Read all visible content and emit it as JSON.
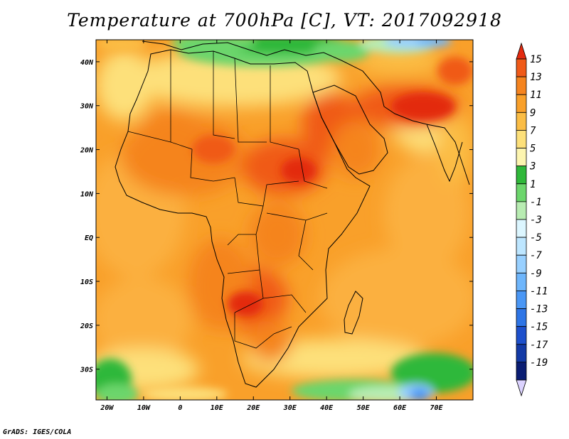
{
  "title": "Temperature at 700hPa [C], VT: 2017092918",
  "footer": "GrADS: IGES/COLA",
  "map": {
    "lon_range": [
      -23,
      80
    ],
    "lat_range": [
      -37,
      45
    ],
    "x_tick_labels": [
      "20W",
      "10W",
      "0",
      "10E",
      "20E",
      "30E",
      "40E",
      "50E",
      "60E",
      "70E"
    ],
    "x_tick_values": [
      -20,
      -10,
      0,
      10,
      20,
      30,
      40,
      50,
      60,
      70
    ],
    "y_tick_labels": [
      "40N",
      "30N",
      "20N",
      "10N",
      "EQ",
      "10S",
      "20S",
      "30S"
    ],
    "y_tick_values": [
      40,
      30,
      20,
      10,
      0,
      -10,
      -20,
      -30
    ]
  },
  "colorbar": {
    "levels": [
      "15",
      "13",
      "11",
      "9",
      "7",
      "5",
      "3",
      "1",
      "-1",
      "-3",
      "-5",
      "-7",
      "-9",
      "-11",
      "-13",
      "-15",
      "-17",
      "-19"
    ],
    "colors": [
      "#e32a10",
      "#f05a18",
      "#f5841f",
      "#f9a02a",
      "#fbbd45",
      "#fde07a",
      "#fdf5b0",
      "#2fb83a",
      "#6cd66c",
      "#b8ecb2",
      "#dcf6ff",
      "#bde6ff",
      "#98d0ff",
      "#6eb6fc",
      "#4a97f5",
      "#2e75e6",
      "#1d50cc",
      "#133aa6",
      "#0a1d73",
      "#dcd3ff"
    ]
  }
}
